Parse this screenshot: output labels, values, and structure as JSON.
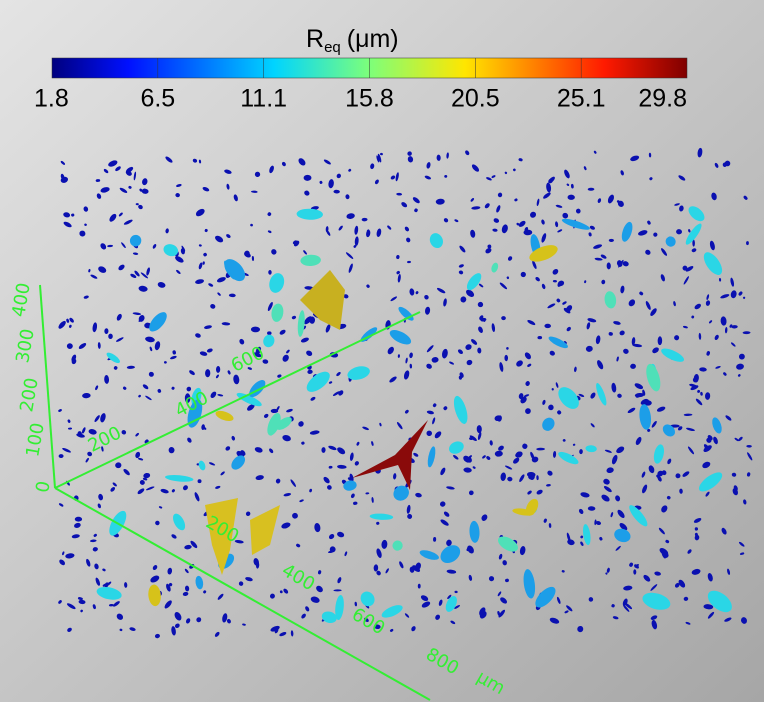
{
  "colorbar": {
    "title": {
      "symbol": "R",
      "subscript": "eq",
      "unit": "(μm)"
    },
    "labels": [
      "1.8",
      "6.5",
      "11.1",
      "15.8",
      "20.5",
      "25.1",
      "29.8"
    ]
  },
  "axes": {
    "vertical": [
      "0",
      "100",
      "200",
      "300",
      "400"
    ],
    "depth": [
      "200",
      "400",
      "600"
    ],
    "horizontal": [
      "200",
      "400",
      "600",
      "800"
    ],
    "unit": "μm"
  }
}
